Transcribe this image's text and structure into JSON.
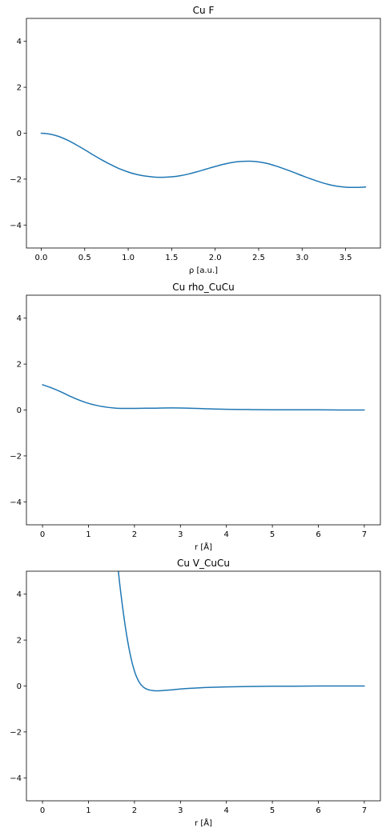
{
  "figure": {
    "series_color": "#1f77b4"
  },
  "chart_data": [
    {
      "type": "line",
      "title": "Cu F",
      "xlabel": "ρ [a.u.]",
      "ylabel": "",
      "xlim": [
        -0.17,
        3.9
      ],
      "ylim": [
        -5,
        5
      ],
      "xticks": [
        0.0,
        0.5,
        1.0,
        1.5,
        2.0,
        2.5,
        3.0,
        3.5
      ],
      "xtick_labels": [
        "0.0",
        "0.5",
        "1.0",
        "1.5",
        "2.0",
        "2.5",
        "3.0",
        "3.5"
      ],
      "yticks": [
        -4,
        -2,
        0,
        2,
        4
      ],
      "ytick_labels": [
        "−4",
        "−2",
        "0",
        "2",
        "4"
      ],
      "grid": false,
      "series": [
        {
          "x": [
            0.0,
            0.1,
            0.2,
            0.3,
            0.4,
            0.5,
            0.6,
            0.7,
            0.8,
            0.9,
            1.0,
            1.1,
            1.2,
            1.3,
            1.4,
            1.5,
            1.6,
            1.7,
            1.8,
            1.9,
            2.0,
            2.1,
            2.2,
            2.3,
            2.4,
            2.5,
            2.6,
            2.7,
            2.8,
            2.9,
            3.0,
            3.1,
            3.2,
            3.3,
            3.4,
            3.5,
            3.6,
            3.7,
            3.73
          ],
          "y": [
            0.0,
            -0.04,
            -0.14,
            -0.3,
            -0.5,
            -0.72,
            -0.95,
            -1.17,
            -1.37,
            -1.55,
            -1.69,
            -1.8,
            -1.87,
            -1.91,
            -1.92,
            -1.9,
            -1.85,
            -1.77,
            -1.67,
            -1.56,
            -1.45,
            -1.35,
            -1.27,
            -1.23,
            -1.22,
            -1.25,
            -1.32,
            -1.43,
            -1.56,
            -1.7,
            -1.85,
            -1.99,
            -2.12,
            -2.23,
            -2.31,
            -2.35,
            -2.36,
            -2.35,
            -2.34
          ]
        }
      ]
    },
    {
      "type": "line",
      "title": "Cu rho_CuCu",
      "xlabel": "r [Å]",
      "ylabel": "",
      "xlim": [
        -0.35,
        7.35
      ],
      "ylim": [
        -5,
        5
      ],
      "xticks": [
        0,
        1,
        2,
        3,
        4,
        5,
        6,
        7
      ],
      "xtick_labels": [
        "0",
        "1",
        "2",
        "3",
        "4",
        "5",
        "6",
        "7"
      ],
      "yticks": [
        -4,
        -2,
        0,
        2,
        4
      ],
      "ytick_labels": [
        "−4",
        "−2",
        "0",
        "2",
        "4"
      ],
      "grid": false,
      "series": [
        {
          "x": [
            0.0,
            0.2,
            0.4,
            0.6,
            0.8,
            1.0,
            1.2,
            1.4,
            1.6,
            1.8,
            2.0,
            2.4,
            2.8,
            3.2,
            3.6,
            4.0,
            4.5,
            5.0,
            5.5,
            6.0,
            6.5,
            7.0
          ],
          "y": [
            1.1,
            0.96,
            0.79,
            0.6,
            0.43,
            0.29,
            0.19,
            0.12,
            0.08,
            0.07,
            0.07,
            0.08,
            0.09,
            0.08,
            0.05,
            0.03,
            0.02,
            0.01,
            0.01,
            0.01,
            0.0,
            0.0
          ]
        }
      ]
    },
    {
      "type": "line",
      "title": "Cu V_CuCu",
      "xlabel": "r [Å]",
      "ylabel": "",
      "xlim": [
        -0.35,
        7.35
      ],
      "ylim": [
        -5,
        5
      ],
      "xticks": [
        0,
        1,
        2,
        3,
        4,
        5,
        6,
        7
      ],
      "xtick_labels": [
        "0",
        "1",
        "2",
        "3",
        "4",
        "5",
        "6",
        "7"
      ],
      "yticks": [
        -4,
        -2,
        0,
        2,
        4
      ],
      "ytick_labels": [
        "−4",
        "−2",
        "0",
        "2",
        "4"
      ],
      "grid": false,
      "series": [
        {
          "x": [
            1.65,
            1.7,
            1.8,
            1.9,
            2.0,
            2.1,
            2.2,
            2.3,
            2.4,
            2.5,
            2.6,
            2.8,
            3.0,
            3.5,
            4.0,
            4.5,
            5.0,
            5.5,
            6.0,
            6.5,
            7.0
          ],
          "y": [
            5.0,
            4.1,
            2.6,
            1.45,
            0.65,
            0.18,
            -0.06,
            -0.16,
            -0.2,
            -0.21,
            -0.2,
            -0.17,
            -0.13,
            -0.07,
            -0.04,
            -0.02,
            -0.01,
            -0.01,
            0.0,
            0.0,
            0.0
          ]
        }
      ]
    }
  ]
}
